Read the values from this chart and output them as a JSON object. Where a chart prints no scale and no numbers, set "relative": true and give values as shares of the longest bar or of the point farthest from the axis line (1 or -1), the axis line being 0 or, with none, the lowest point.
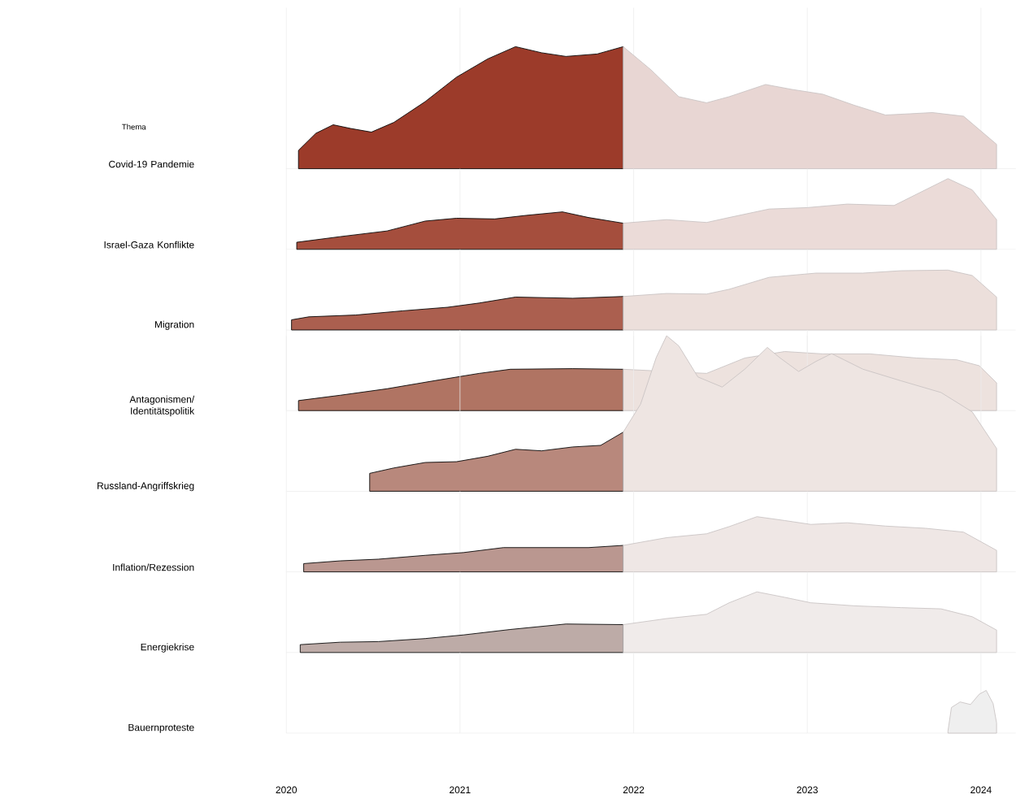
{
  "chart_data": [
    {
      "type": "area",
      "relative": true,
      "xlim": [
        2020,
        2024.2
      ],
      "xticks": [
        2020,
        2021,
        2022,
        2023,
        2024
      ],
      "grid": "x",
      "tick_labels": false,
      "annotations": [
        "Thema"
      ],
      "series": [
        {
          "name": "Covid-19 Pandemie",
          "color": "#9c3b2a",
          "x": [
            2020.07,
            2020.17,
            2020.27,
            2020.37,
            2020.49,
            2020.62,
            2020.8,
            2020.98,
            2021.16,
            2021.32,
            2021.47,
            2021.61,
            2021.79,
            2021.94
          ],
          "values": [
            0.15,
            0.29,
            0.36,
            0.33,
            0.3,
            0.38,
            0.55,
            0.75,
            0.9,
            1,
            0.95,
            0.92,
            0.94,
            1
          ]
        },
        {
          "color": "#e8d6d3",
          "x": [
            2021.94,
            2022.1,
            2022.26,
            2022.42,
            2022.55,
            2022.76,
            2022.91,
            2023.09,
            2023.27,
            2023.45,
            2023.59,
            2023.72,
            2023.9,
            2024.09
          ],
          "values": [
            1,
            0.81,
            0.59,
            0.54,
            0.59,
            0.69,
            0.65,
            0.61,
            0.52,
            0.44,
            0.45,
            0.46,
            0.43,
            0.2
          ]
        }
      ]
    },
    {
      "type": "area",
      "relative": true,
      "xlim": [
        2020,
        2024.2
      ],
      "xticks": [
        2020,
        2021,
        2022,
        2023,
        2024
      ],
      "grid": "x",
      "tick_labels": false,
      "series": [
        {
          "name": "Israel-Gaza Konflikte",
          "color": "#a54e3d",
          "x": [
            2020.06,
            2020.31,
            2020.58,
            2020.8,
            2020.98,
            2021.2,
            2021.38,
            2021.59,
            2021.74,
            2021.94
          ],
          "values": [
            0.1,
            0.18,
            0.26,
            0.4,
            0.44,
            0.43,
            0.48,
            0.53,
            0.45,
            0.37
          ]
        },
        {
          "color": "#ebdbd8",
          "x": [
            2021.94,
            2022.19,
            2022.42,
            2022.55,
            2022.78,
            2023.0,
            2023.23,
            2023.5,
            2023.63,
            2023.81,
            2023.95,
            2024.09
          ],
          "values": [
            0.37,
            0.42,
            0.38,
            0.45,
            0.57,
            0.59,
            0.64,
            0.62,
            0.78,
            1,
            0.84,
            0.42
          ]
        }
      ]
    },
    {
      "type": "area",
      "relative": true,
      "xlim": [
        2020,
        2024.2
      ],
      "xticks": [
        2020,
        2021,
        2022,
        2023,
        2024
      ],
      "grid": "x",
      "tick_labels": false,
      "series": [
        {
          "name": "Migration",
          "color": "#ab5f4f",
          "x": [
            2020.03,
            2020.13,
            2020.4,
            2020.67,
            2020.93,
            2021.11,
            2021.32,
            2021.65,
            2021.94
          ],
          "values": [
            0.17,
            0.22,
            0.25,
            0.32,
            0.38,
            0.45,
            0.55,
            0.53,
            0.56
          ]
        },
        {
          "color": "#ecdfdb",
          "x": [
            2021.94,
            2022.19,
            2022.42,
            2022.55,
            2022.78,
            2023.05,
            2023.32,
            2023.54,
            2023.81,
            2023.95,
            2024.09
          ],
          "values": [
            0.56,
            0.61,
            0.6,
            0.68,
            0.88,
            0.95,
            0.95,
            0.99,
            1,
            0.91,
            0.55
          ]
        }
      ]
    },
    {
      "type": "area",
      "relative": true,
      "xlim": [
        2020,
        2024.2
      ],
      "xticks": [
        2020,
        2021,
        2022,
        2023,
        2024
      ],
      "grid": "x",
      "tick_labels": false,
      "series": [
        {
          "name": "Antagonismen/\nIdentitätspolitik",
          "color": "#b07463",
          "x": [
            2020.07,
            2020.31,
            2020.58,
            2020.84,
            2021.11,
            2021.29,
            2021.65,
            2021.94
          ],
          "values": [
            0.17,
            0.26,
            0.37,
            0.5,
            0.63,
            0.7,
            0.71,
            0.7
          ]
        },
        {
          "color": "#ede2de",
          "x": [
            2021.94,
            2022.19,
            2022.42,
            2022.64,
            2022.87,
            2023.09,
            2023.36,
            2023.63,
            2023.86,
            2023.99,
            2024.09
          ],
          "values": [
            0.7,
            null,
            0.63,
            0.89,
            1,
            0.96,
            0.96,
            0.89,
            0.86,
            0.76,
            0.47
          ]
        }
      ]
    },
    {
      "type": "area",
      "relative": true,
      "xlim": [
        2020,
        2024.2
      ],
      "xticks": [
        2020,
        2021,
        2022,
        2023,
        2024
      ],
      "grid": "x",
      "tick_labels": false,
      "series": [
        {
          "name": "Russland-Angriffskrieg",
          "color": "#b8887c",
          "x": [
            2020.48,
            2020.62,
            2020.8,
            2020.98,
            2021.16,
            2021.32,
            2021.47,
            2021.65,
            2021.81,
            2021.94
          ],
          "values": [
            0.115,
            0.15,
            0.185,
            0.19,
            0.225,
            0.27,
            0.26,
            0.285,
            0.295,
            0.38
          ]
        },
        {
          "color": "#eee5e2",
          "x": [
            2021.94,
            2022.04,
            2022.13,
            2022.19,
            2022.26,
            2022.37,
            2022.51,
            2022.64,
            2022.77,
            2022.84,
            2022.95,
            2023.05,
            2023.14,
            2023.32,
            2023.54,
            2023.77,
            2023.95,
            2024.09
          ],
          "values": [
            0.38,
            0.56,
            0.86,
            1.0,
            0.935,
            0.735,
            0.67,
            0.785,
            0.925,
            0.86,
            0.77,
            0.835,
            0.885,
            0.785,
            0.71,
            0.635,
            0.51,
            0.275
          ]
        }
      ]
    },
    {
      "type": "area",
      "relative": true,
      "xlim": [
        2020,
        2024.2
      ],
      "xticks": [
        2020,
        2021,
        2022,
        2023,
        2024
      ],
      "grid": "x",
      "tick_labels": false,
      "series": [
        {
          "name": "Inflation/Rezession",
          "color": "#ba9790",
          "x": [
            2020.1,
            2020.31,
            2020.53,
            2020.8,
            2021.02,
            2021.25,
            2021.52,
            2021.74,
            2021.94
          ],
          "values": [
            0.15,
            0.2,
            0.23,
            0.3,
            0.35,
            0.44,
            0.44,
            0.44,
            0.48
          ]
        },
        {
          "color": "#efe7e5",
          "x": [
            2021.94,
            2022.19,
            2022.42,
            2022.55,
            2022.71,
            2022.87,
            2023.02,
            2023.23,
            2023.45,
            2023.68,
            2023.9,
            2024.09
          ],
          "values": [
            0.48,
            0.62,
            0.69,
            0.82,
            1,
            0.93,
            0.86,
            0.89,
            0.83,
            0.79,
            0.72,
            0.39
          ]
        }
      ]
    },
    {
      "type": "area",
      "relative": true,
      "xlim": [
        2020,
        2024.2
      ],
      "xticks": [
        2020,
        2021,
        2022,
        2023,
        2024
      ],
      "grid": "x",
      "tick_labels": false,
      "series": [
        {
          "name": "Energiekrise",
          "color": "#bdaba7",
          "x": [
            2020.08,
            2020.31,
            2020.53,
            2020.8,
            2021.02,
            2021.29,
            2021.61,
            2021.94
          ],
          "values": [
            0.13,
            0.17,
            0.18,
            0.23,
            0.29,
            0.38,
            0.47,
            0.46
          ]
        },
        {
          "color": "#f0ebea",
          "x": [
            2021.94,
            2022.19,
            2022.42,
            2022.55,
            2022.71,
            2022.87,
            2023.02,
            2023.27,
            2023.54,
            2023.77,
            2023.95,
            2024.09
          ],
          "values": [
            0.46,
            0.56,
            0.63,
            0.82,
            1,
            0.91,
            0.82,
            0.77,
            0.74,
            0.72,
            0.59,
            0.37
          ]
        }
      ]
    },
    {
      "type": "area",
      "relative": true,
      "xlim": [
        2020,
        2024.2
      ],
      "xticks": [
        2020,
        2021,
        2022,
        2023,
        2024
      ],
      "grid": "x",
      "tick_labels": "x",
      "series": [
        {
          "name": "Bauernproteste",
          "color": "#efefef",
          "x": [
            2023.81,
            2023.83,
            2023.88,
            2023.94,
            2023.99,
            2024.03,
            2024.07,
            2024.09
          ],
          "values": [
            0.05,
            0.6,
            0.73,
            0.67,
            0.91,
            1,
            0.69,
            0.24
          ]
        }
      ]
    }
  ]
}
